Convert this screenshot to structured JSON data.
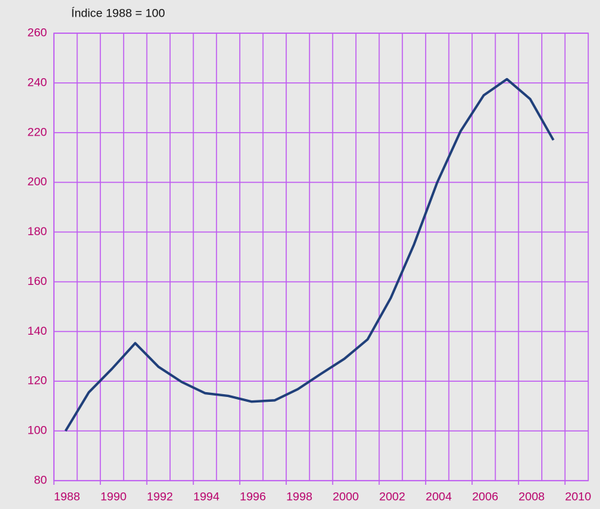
{
  "chart_data": {
    "type": "line",
    "title": "Índice 1988 = 100",
    "x": [
      1988.5,
      1989.5,
      1990.5,
      1991.5,
      1992.5,
      1993.5,
      1994.5,
      1995.5,
      1996.5,
      1997.5,
      1998.5,
      1999.5,
      2000.5,
      2001.5,
      2002.5,
      2003.5,
      2004.5,
      2005.5,
      2006.5,
      2007.5,
      2008.5,
      2009.5
    ],
    "series": [
      {
        "name": "Índice",
        "color": "#1f3f7a",
        "values": [
          100,
          115.5,
          125,
          135.3,
          125.8,
          119.7,
          115.2,
          114.1,
          111.8,
          112.3,
          116.8,
          123,
          129,
          136.8,
          153.5,
          175,
          200,
          220.5,
          235,
          241.5,
          233.5,
          217
        ]
      }
    ],
    "xlim": [
      1988,
      2011
    ],
    "xticks": [
      1988,
      1990,
      1992,
      1994,
      1996,
      1998,
      2000,
      2002,
      2004,
      2006,
      2008,
      2010
    ],
    "xminorticks": [
      1989,
      1991,
      1993,
      1995,
      1997,
      1999,
      2001,
      2003,
      2005,
      2007,
      2009
    ],
    "ylim": [
      80,
      260
    ],
    "yticks": [
      80,
      100,
      120,
      140,
      160,
      180,
      200,
      220,
      240,
      260
    ],
    "grid": true,
    "grid_color": "#bf5cf0",
    "tick_label_color": "#b8006b"
  }
}
